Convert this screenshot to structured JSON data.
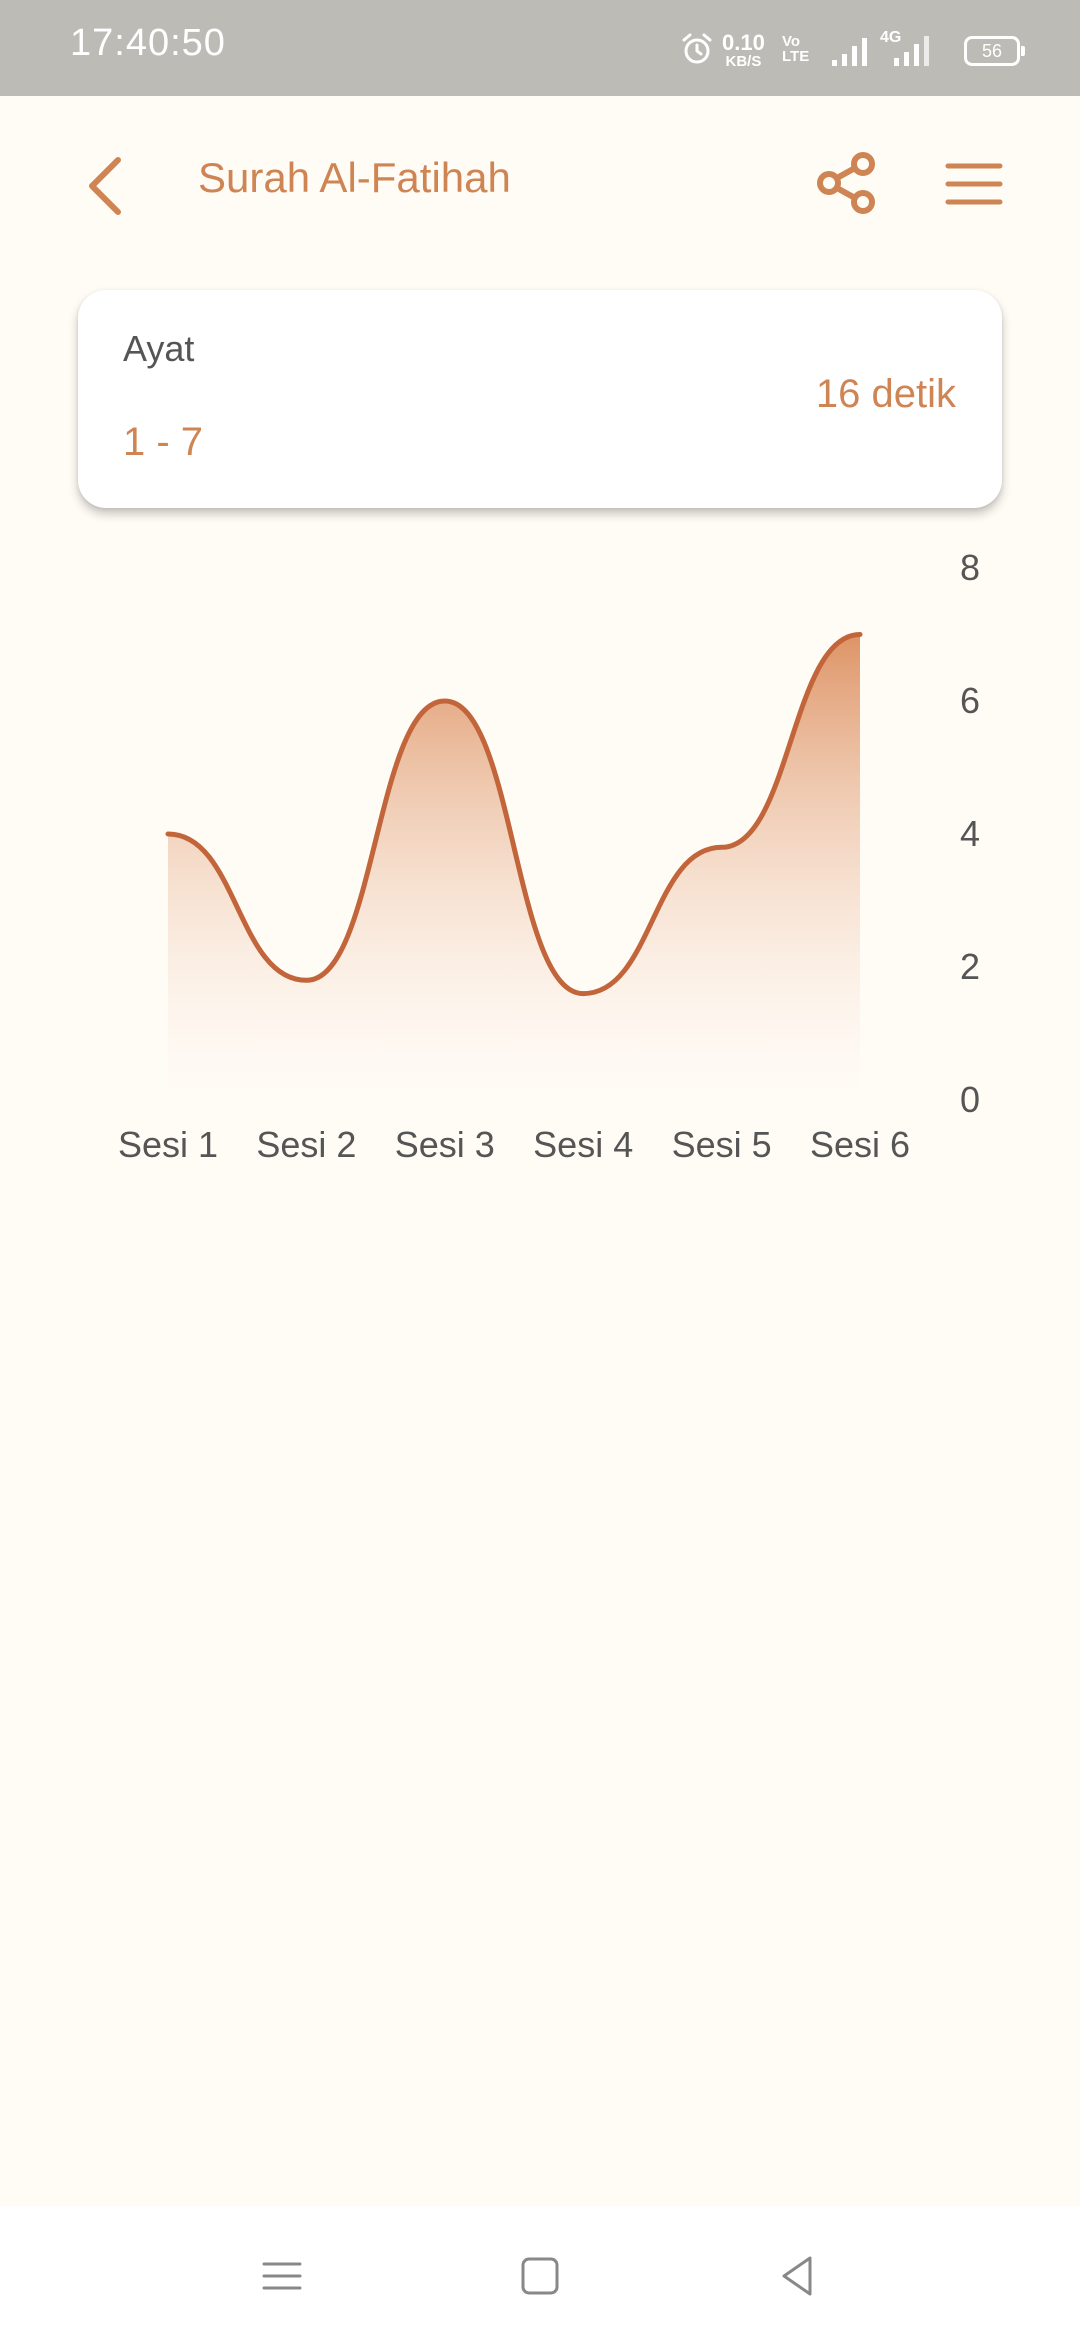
{
  "status_bar": {
    "time": "17:40:50",
    "net_speed_value": "0.10",
    "net_speed_unit": "KB/S",
    "volte_top": "Vo",
    "volte_bottom": "LTE",
    "network_type": "4G",
    "battery": "56",
    "icons": [
      "alarm-icon",
      "signal-icon",
      "battery-icon"
    ]
  },
  "header": {
    "title": "Surah Al-Fatihah",
    "icons": [
      "chevron-left-icon",
      "share-icon",
      "hamburger-menu-icon"
    ]
  },
  "card": {
    "ayat_label": "Ayat",
    "ayat_range": "1 - 7",
    "duration": "16 detik"
  },
  "chart_data": {
    "type": "area",
    "categories": [
      "Sesi 1",
      "Sesi 2",
      "Sesi 3",
      "Sesi 4",
      "Sesi 5",
      "Sesi 6"
    ],
    "series": [
      {
        "values": [
          4,
          1.8,
          6,
          1.6,
          3.8,
          7
        ]
      }
    ],
    "ylim": [
      0,
      8
    ],
    "yticks": [
      "0",
      "2",
      "4",
      "6",
      "8"
    ],
    "y_axis_side": "right",
    "grid": false,
    "curve": "smooth",
    "colors": {
      "line": "#C2653A",
      "fill_top": "#DE9466",
      "fill_bottom": "#FFFBF5",
      "text": "#555555"
    }
  },
  "theme": {
    "accent": "#CF8553",
    "background": "#FFFBF5",
    "status_bar": "#BDBBB6"
  },
  "nav_bar": {
    "icons": [
      "recents-icon",
      "home-icon",
      "back-triangle-icon"
    ]
  }
}
